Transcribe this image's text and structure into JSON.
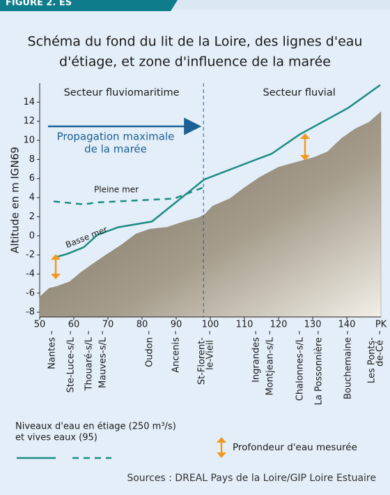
{
  "header": {
    "tab": "FIGURE 2. ES"
  },
  "chart_data": {
    "type": "line",
    "title": [
      "Schéma du fond du lit de la Loire, des lignes d'eau",
      "d'étiage, et zone d'influence de la marée"
    ],
    "ylabel": "Altitude en m IGN69",
    "xlabel": "PK",
    "xlim": [
      50,
      150
    ],
    "xticks": [
      50,
      60,
      70,
      80,
      90,
      100,
      110,
      120,
      130,
      140
    ],
    "ylim": [
      -8.5,
      16
    ],
    "yticks": [
      -8,
      -6,
      -4,
      -2,
      0,
      2,
      4,
      6,
      8,
      10,
      12,
      14
    ],
    "sectors": [
      "Secteur fluviomaritime",
      "Secteur fluvial"
    ],
    "sector_boundary": 98,
    "tide_annotation": [
      "Propagation maximale",
      "de la marée"
    ],
    "tide_color": "#1a5f96",
    "series": [
      {
        "name": "Basse mer",
        "color": "#1b8c82",
        "dashed": false,
        "x": [
          54.1,
          58,
          62.9,
          66.9,
          73,
          82.9,
          98.2,
          113.5,
          118,
          126.1,
          140.4,
          149.8
        ],
        "values": [
          -2.3,
          -1.9,
          -1.2,
          0.1,
          0.9,
          1.5,
          5.9,
          8.0,
          8.6,
          10.6,
          13.4,
          15.8
        ]
      },
      {
        "name": "Pleine mer",
        "color": "#1b8c82",
        "dashed": true,
        "x": [
          54.1,
          62.9,
          66.9,
          89.4,
          98.2
        ],
        "values": [
          3.6,
          3.3,
          3.5,
          3.9,
          5.1
        ]
      }
    ],
    "riverbed": {
      "color": "#8f8574",
      "x": [
        50,
        52.7,
        55,
        58.8,
        61.8,
        64.9,
        69,
        74.1,
        78.2,
        82.2,
        87.3,
        92.4,
        96.5,
        98.2,
        100.6,
        105.7,
        109.8,
        114.3,
        120,
        125.1,
        130.2,
        134.3,
        138.4,
        142.4,
        146.5,
        150
      ],
      "values": [
        -6.4,
        -5.5,
        -5.3,
        -4.8,
        -3.9,
        -3.1,
        -2.1,
        -0.9,
        0.2,
        0.7,
        0.9,
        1.5,
        1.9,
        2.2,
        3.1,
        3.9,
        5.0,
        6.1,
        7.2,
        7.7,
        8.2,
        8.8,
        10.2,
        11.2,
        11.9,
        13.0
      ]
    },
    "locations": [
      {
        "label": [
          "Nantes"
        ],
        "x": 53.7
      },
      {
        "label": [
          "Ste-Luce-s/L"
        ],
        "x": 59.2
      },
      {
        "label": [
          "Thouaré-s/L"
        ],
        "x": 64.5
      },
      {
        "label": [
          "Mauves-s/L"
        ],
        "x": 68.6
      },
      {
        "label": [
          "Oudon"
        ],
        "x": 82.2
      },
      {
        "label": [
          "Ancenis"
        ],
        "x": 90
      },
      {
        "label": [
          "St-Florent-",
          "le-Vieil"
        ],
        "x": 98.8
      },
      {
        "label": [
          "Ingrandes"
        ],
        "x": 113.5
      },
      {
        "label": [
          "Montjean-s/L"
        ],
        "x": 117.6
      },
      {
        "label": [
          "Chalonnes-s/L"
        ],
        "x": 126.3
      },
      {
        "label": [
          "La Possonnière"
        ],
        "x": 131.8
      },
      {
        "label": [
          "Bouchemaine"
        ],
        "x": 140.4
      },
      {
        "label": [
          "Les Ponts-",
          "de-Cé"
        ],
        "x": 148.6
      }
    ]
  },
  "legend": {
    "levels": [
      "Niveaux d'eau en étiage (250 m³/s)",
      "et vives eaux (95)"
    ],
    "depth": "Profondeur d'eau mesurée"
  },
  "source": "Sources : DREAL Pays de la Loire/GIP Loire Estuaire"
}
